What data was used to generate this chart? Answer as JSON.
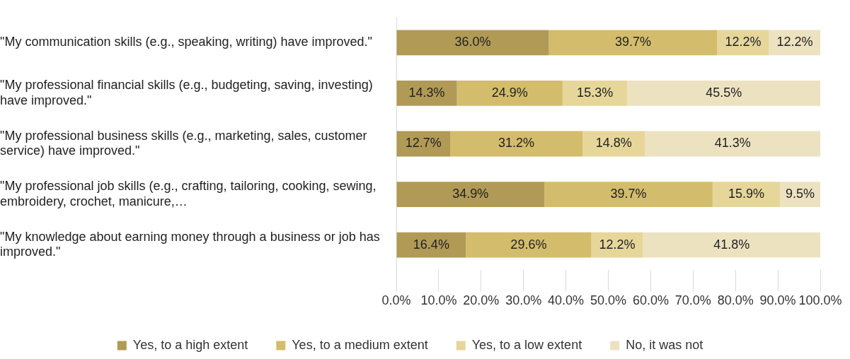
{
  "chart_data": {
    "type": "bar",
    "orientation": "horizontal",
    "stacked": true,
    "categories": [
      "\"My communication skills (e.g., speaking, writing) have improved.\"",
      "\"My professional financial skills (e.g., budgeting, saving, investing) have improved.\"",
      "\"My professional business skills (e.g., marketing, sales, customer service) have improved.\"",
      "\"My professional job skills (e.g., crafting, tailoring, cooking, sewing, embroidery, crochet, manicure,…",
      "\"My knowledge about earning money through a business or job has improved.\""
    ],
    "series": [
      {
        "name": "Yes, to a high extent",
        "color": "#b09a55",
        "values": [
          36.0,
          14.3,
          12.7,
          34.9,
          16.4
        ],
        "value_labels": [
          "36.0%",
          "14.3%",
          "12.7%",
          "34.9%",
          "16.4%"
        ]
      },
      {
        "name": "Yes, to a medium extent",
        "color": "#d3bc6b",
        "values": [
          39.7,
          24.9,
          31.2,
          39.7,
          29.6
        ],
        "value_labels": [
          "39.7%",
          "24.9%",
          "31.2%",
          "39.7%",
          "29.6%"
        ]
      },
      {
        "name": "Yes, to a low extent",
        "color": "#e6d69a",
        "values": [
          12.2,
          15.3,
          14.8,
          15.9,
          12.2
        ],
        "value_labels": [
          "12.2%",
          "15.3%",
          "14.8%",
          "15.9%",
          "12.2%"
        ]
      },
      {
        "name": "No, it was not",
        "color": "#ede2c0",
        "values": [
          12.2,
          45.5,
          41.3,
          9.5,
          41.8
        ],
        "value_labels": [
          "12.2%",
          "45.5%",
          "41.3%",
          "9.5%",
          "41.8%"
        ]
      }
    ],
    "xlim": [
      0,
      100
    ],
    "xticks": [
      {
        "value": 0,
        "label": "0.0%"
      },
      {
        "value": 10,
        "label": "10.0%"
      },
      {
        "value": 20,
        "label": "20.0%"
      },
      {
        "value": 30,
        "label": "30.0%"
      },
      {
        "value": 40,
        "label": "40.0%"
      },
      {
        "value": 50,
        "label": "50.0%"
      },
      {
        "value": 60,
        "label": "60.0%"
      },
      {
        "value": 70,
        "label": "70.0%"
      },
      {
        "value": 80,
        "label": "80.0%"
      },
      {
        "value": 90,
        "label": "90.0%"
      },
      {
        "value": 100,
        "label": "100.0%"
      }
    ],
    "grid": false,
    "legend": "bottom"
  }
}
